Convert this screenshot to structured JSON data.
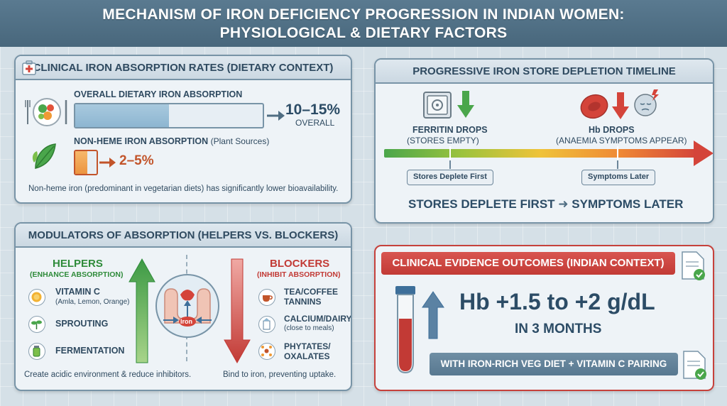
{
  "header": {
    "title_line1": "MECHANISM OF IRON DEFICIENCY PROGRESSION IN INDIAN WOMEN:",
    "title_line2": "PHYSIOLOGICAL & DIETARY FACTORS"
  },
  "absorption": {
    "title": "CLINICAL IRON ABSORPTION RATES (DIETARY CONTEXT)",
    "overall_label": "OVERALL DIETARY IRON ABSORPTION",
    "overall_value": "10–15%",
    "overall_sub": "OVERALL",
    "overall_fill": 0.5,
    "nonheme_label": "NON-HEME IRON ABSORPTION",
    "nonheme_source": "(Plant Sources)",
    "nonheme_value": "2–5%",
    "note": "Non-heme iron (predominant in vegetarian diets) has significantly lower bioavailability.",
    "colors": {
      "overall_bar": "#8db6d1",
      "nonheme_bar": "#ec9440",
      "nonheme_text": "#c2542a"
    }
  },
  "timeline": {
    "title": "PROGRESSIVE IRON STORE DEPLETION TIMELINE",
    "ferritin_title": "FERRITIN DROPS",
    "ferritin_sub": "(STORES EMPTY)",
    "hb_title": "Hb DROPS",
    "hb_sub": "(ANAEMIA SYMPTOMS APPEAR)",
    "marker_first": "Stores Deplete First",
    "marker_later": "Symptoms Later",
    "summary_left": "STORES DEPLETE FIRST",
    "summary_right": "SYMPTOMS LATER",
    "icons": [
      "safe-icon",
      "down-arrow-icon",
      "red-blood-cell-icon",
      "tired-face-icon"
    ]
  },
  "modulators": {
    "title": "MODULATORS OF ABSORPTION (HELPERS VS. BLOCKERS)",
    "helpers_title": "HELPERS",
    "helpers_sub": "(ENHANCE ABSORPTION)",
    "helpers": [
      {
        "name": "VITAMIN C",
        "detail": "(Amla, Lemon, Orange)",
        "icon": "citrus-icon"
      },
      {
        "name": "SPROUTING",
        "detail": "",
        "icon": "sprout-icon"
      },
      {
        "name": "FERMENTATION",
        "detail": "",
        "icon": "jar-icon"
      }
    ],
    "helpers_note": "Create acidic environment & reduce inhibitors.",
    "blockers_title": "BLOCKERS",
    "blockers_sub": "(INHIBIT ABSORPTION)",
    "blockers": [
      {
        "name": "TEA/COFFEE",
        "name2": "TANNINS",
        "detail": "",
        "icon": "tea-cup-icon"
      },
      {
        "name": "CALCIUM/DAIRY",
        "name2": "",
        "detail": "(close to meals)",
        "icon": "milk-icon"
      },
      {
        "name": "PHYTATES/",
        "name2": "OXALATES",
        "detail": "",
        "icon": "molecule-icon"
      }
    ],
    "blockers_note": "Bind to iron, preventing uptake.",
    "gut_label": "Iron",
    "colors": {
      "helper": "#2e8b3a",
      "blocker": "#c23a35"
    }
  },
  "evidence": {
    "title": "CLINICAL EVIDENCE OUTCOMES (INDIAN CONTEXT)",
    "headline": "Hb +1.5 to +2 g/dL",
    "duration": "IN 3 MONTHS",
    "pairing": "WITH IRON-RICH VEG DIET + VITAMIN C PAIRING"
  }
}
